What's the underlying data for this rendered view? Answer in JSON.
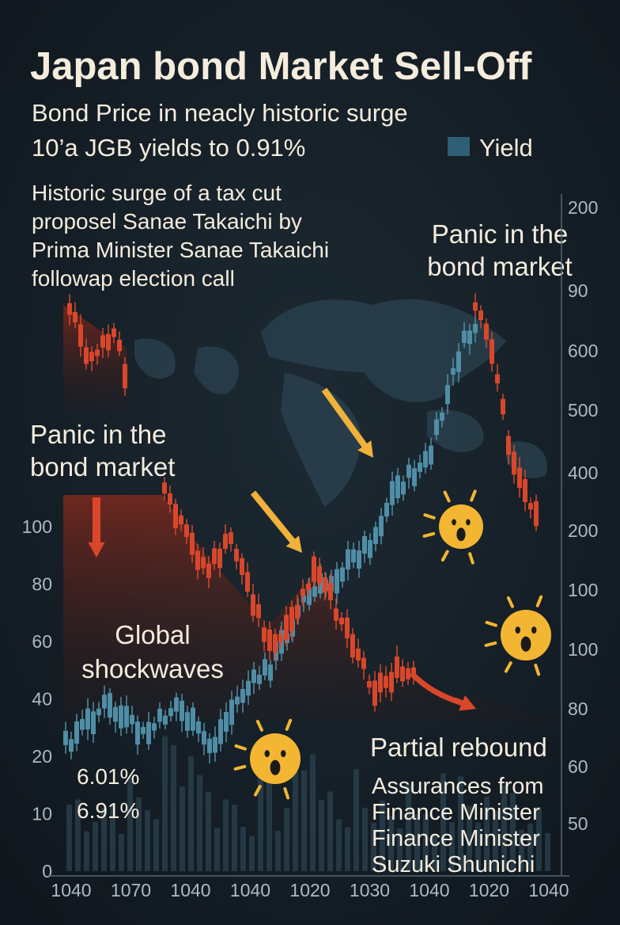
{
  "header": {
    "title": "Japan bond Market Sell-Off",
    "subtitle_lines": [
      "Bond Price in neacly historic surge",
      "10’a JGB yields to 0.91%"
    ]
  },
  "legend": {
    "label": "Yield",
    "color": "#2f5f75"
  },
  "annotations": {
    "intro": [
      "Historic surge of a tax cut",
      "proposel Sanae Takaichi by",
      "Prima Minister Sanae Takaichi",
      "followap election call"
    ],
    "panic_right": [
      "Panic in the",
      "bond market"
    ],
    "panic_left": [
      "Panic in the",
      "bond market"
    ],
    "global": [
      "Global",
      "shockwaves"
    ],
    "yields": [
      "6.01%",
      "6.91%"
    ],
    "rebound_title": "Partial rebound",
    "rebound_text": [
      "Assurances from",
      "Finance Minister",
      "Finance Minister",
      "Suzuki Shunichi"
    ]
  },
  "axes": {
    "left": [
      "100",
      "80",
      "60",
      "40",
      "20",
      "10",
      "0"
    ],
    "right": [
      "200",
      "90",
      "600",
      "500",
      "400",
      "200",
      "100",
      "100",
      "80",
      "60",
      "50"
    ],
    "bottom": [
      "1040",
      "1070",
      "1040",
      "1040",
      "1020",
      "1030",
      "1040",
      "1020",
      "1040"
    ]
  }
}
